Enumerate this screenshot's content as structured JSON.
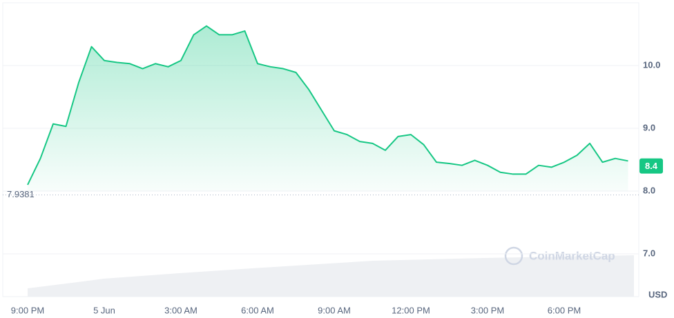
{
  "chart_data": {
    "type": "line",
    "categories": [
      "9:00 PM",
      null,
      null,
      null,
      null,
      null,
      "5 Jun",
      null,
      null,
      null,
      null,
      null,
      "3:00 AM",
      null,
      null,
      null,
      null,
      null,
      "6:00 AM",
      null,
      null,
      null,
      null,
      null,
      "9:00 AM",
      null,
      null,
      null,
      null,
      null,
      "12:00 PM",
      null,
      null,
      null,
      null,
      null,
      "3:00 PM",
      null,
      null,
      null,
      null,
      null,
      "6:00 PM",
      null,
      null,
      null,
      null,
      null
    ],
    "series": [
      {
        "name": "Price",
        "color": "#16c784",
        "values": [
          8.1,
          8.52,
          9.07,
          9.03,
          9.73,
          10.3,
          10.08,
          10.05,
          10.03,
          9.95,
          10.03,
          9.98,
          10.08,
          10.49,
          10.63,
          10.49,
          10.49,
          10.55,
          10.03,
          9.98,
          9.95,
          9.89,
          9.62,
          9.29,
          8.96,
          8.9,
          8.79,
          8.76,
          8.65,
          8.87,
          8.9,
          8.74,
          8.46,
          8.44,
          8.41,
          8.49,
          8.41,
          8.3,
          8.27,
          8.27,
          8.41,
          8.38,
          8.46,
          8.57,
          8.76,
          8.46,
          8.52,
          8.48
        ]
      }
    ],
    "ylim": [
      6.3,
      11.0
    ],
    "yticks": [
      {
        "value": 7,
        "label": "7.0"
      },
      {
        "value": 8,
        "label": "8.0"
      },
      {
        "value": 9,
        "label": "9.0"
      },
      {
        "value": 10,
        "label": "10.0"
      }
    ],
    "grid": true,
    "y_unit": "USD",
    "current_price": 8.4,
    "reference_price": 7.9381,
    "watermark": "CoinMarketCap"
  }
}
